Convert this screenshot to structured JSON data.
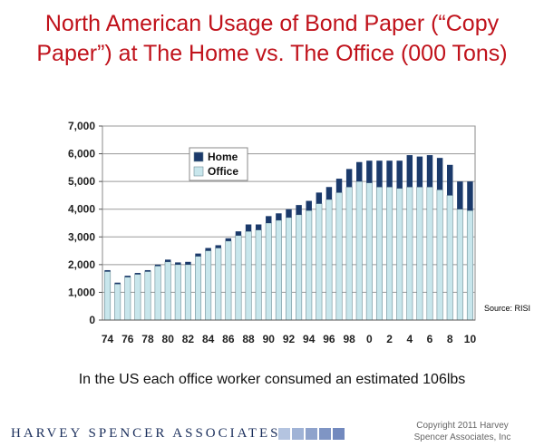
{
  "title_line1": "North American Usage of Bond Paper (“Copy",
  "title_line2": "Paper”) at The Home vs. The Office (000 Tons)",
  "caption": "In the US each office worker consumed an estimated 106lbs",
  "source": "Source: RISI",
  "footer": {
    "logo": "HARVEY SPENCER ASSOCIATES",
    "copyright_line1": "Copyright 2011 Harvey",
    "copyright_line2": "Spencer Associates, Inc"
  },
  "colors": {
    "title": "#c0121b",
    "home": "#1b3a6b",
    "office": "#c8e6ec",
    "squares": [
      "#b4c4e0",
      "#a0b3d6",
      "#8fa3cc",
      "#7f95c4",
      "#7289be"
    ]
  },
  "chart_data": {
    "type": "bar",
    "stacked": true,
    "title": "North American Usage of Bond Paper (“Copy Paper”) at The Home vs. The Office (000 Tons)",
    "ylim": [
      0,
      7000
    ],
    "yticks": [
      0,
      1000,
      2000,
      3000,
      4000,
      5000,
      6000,
      7000
    ],
    "ytick_labels": [
      "0",
      "1,000",
      "2,000",
      "3,000",
      "4,000",
      "5,000",
      "6,000",
      "7,000"
    ],
    "xtick_labels": [
      "74",
      "76",
      "78",
      "80",
      "82",
      "84",
      "86",
      "88",
      "90",
      "92",
      "94",
      "96",
      "98",
      "0",
      "2",
      "4",
      "6",
      "8",
      "10"
    ],
    "grid": true,
    "legend_position": "top-left",
    "categories": [
      "74",
      "75",
      "76",
      "77",
      "78",
      "79",
      "80",
      "81",
      "82",
      "83",
      "84",
      "85",
      "86",
      "87",
      "88",
      "89",
      "90",
      "91",
      "92",
      "93",
      "94",
      "95",
      "96",
      "97",
      "98",
      "99",
      "0",
      "1",
      "2",
      "3",
      "4",
      "5",
      "6",
      "7",
      "8",
      "9",
      "10"
    ],
    "series": [
      {
        "name": "Office",
        "values": [
          1750,
          1300,
          1550,
          1650,
          1750,
          1950,
          2100,
          2000,
          2000,
          2300,
          2500,
          2600,
          2850,
          3050,
          3200,
          3250,
          3500,
          3600,
          3700,
          3800,
          3950,
          4200,
          4350,
          4600,
          4800,
          5000,
          4950,
          4800,
          4800,
          4750,
          4800,
          4800,
          4800,
          4700,
          4500,
          4000,
          3950
        ]
      },
      {
        "name": "Home",
        "values": [
          50,
          50,
          50,
          50,
          50,
          50,
          80,
          80,
          100,
          100,
          100,
          100,
          100,
          150,
          250,
          200,
          250,
          250,
          300,
          350,
          350,
          400,
          450,
          500,
          650,
          700,
          800,
          950,
          950,
          1000,
          1150,
          1100,
          1150,
          1150,
          1100,
          1000,
          1050
        ]
      }
    ]
  }
}
